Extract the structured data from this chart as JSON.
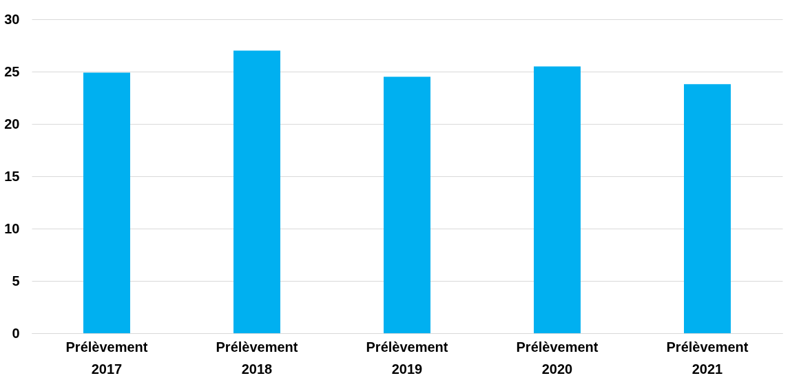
{
  "chart_data": {
    "type": "bar",
    "categories": [
      "Prélèvement 2017",
      "Prélèvement 2018",
      "Prélèvement 2019",
      "Prélèvement 2020",
      "Prélèvement 2021"
    ],
    "values": [
      24.9,
      27.0,
      24.5,
      25.5,
      23.8
    ],
    "color": "#00b0f0",
    "ylim": [
      0,
      30
    ],
    "yticks": [
      0,
      5,
      10,
      15,
      20,
      25,
      30
    ],
    "grid": "y"
  }
}
